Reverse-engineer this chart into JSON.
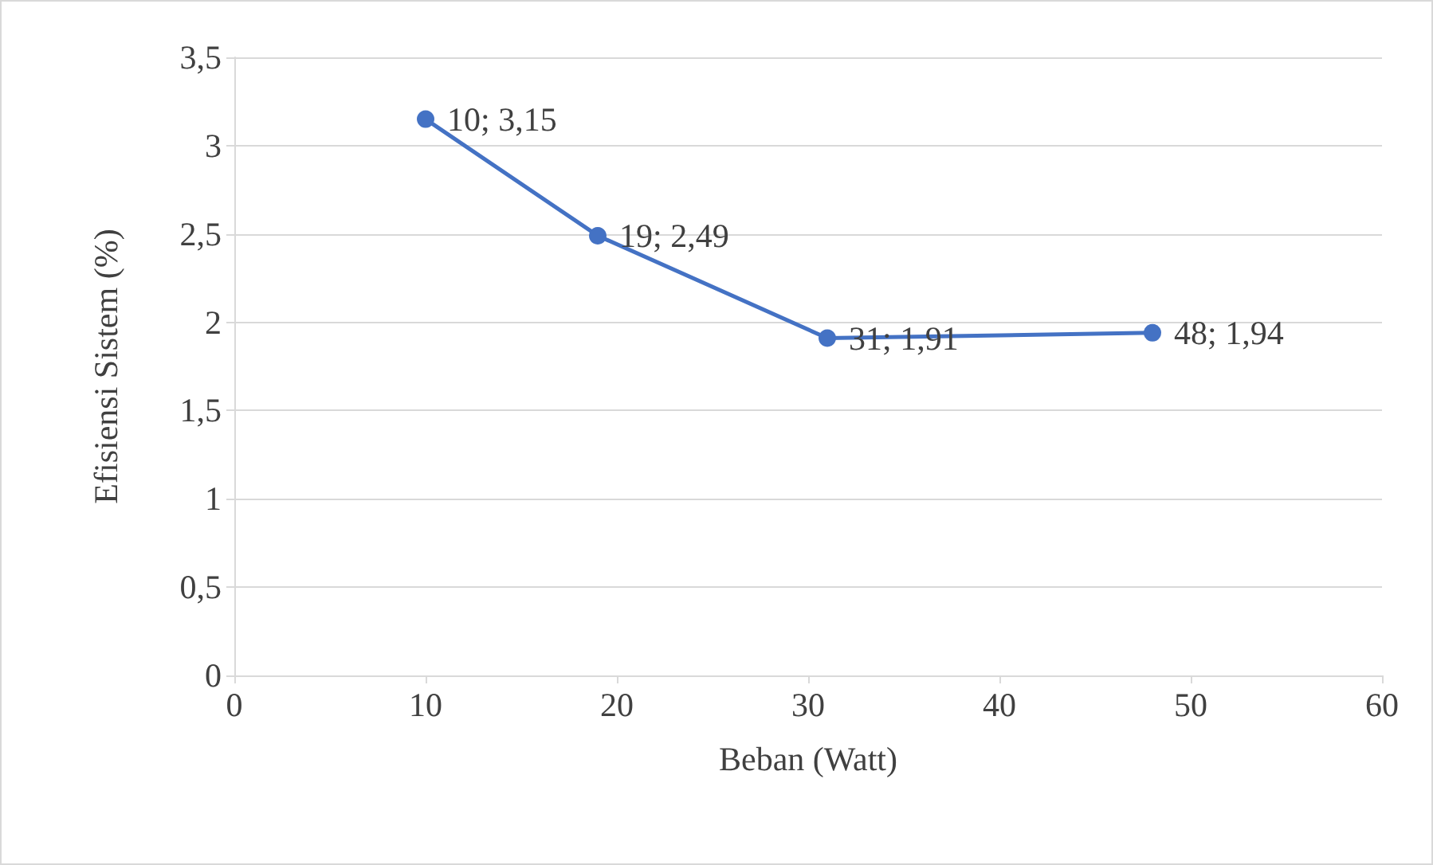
{
  "chart_data": {
    "type": "line",
    "xlabel": "Beban (Watt)",
    "ylabel": "Efisiensi Sistem (%)",
    "x": [
      10,
      19,
      31,
      48
    ],
    "series": [
      {
        "color": "#4472c4",
        "values": [
          3.15,
          2.49,
          1.91,
          1.94
        ],
        "value_labels": [
          "10; 3,15",
          "19; 2,49",
          "31; 1,91",
          "48; 1,94"
        ]
      }
    ],
    "xlim": [
      0,
      60
    ],
    "xticks": [
      0,
      10,
      20,
      30,
      40,
      50,
      60
    ],
    "ylim": [
      0,
      3.5
    ],
    "yticks": [
      0,
      {
        "value": 0.5,
        "label": "0,5"
      },
      1,
      {
        "value": 1.5,
        "label": "1,5"
      },
      2,
      {
        "value": 2.5,
        "label": "2,5"
      },
      3,
      {
        "value": 3.5,
        "label": "3,5"
      }
    ],
    "grid": "y",
    "marker": "circle",
    "line_style": "solid"
  }
}
